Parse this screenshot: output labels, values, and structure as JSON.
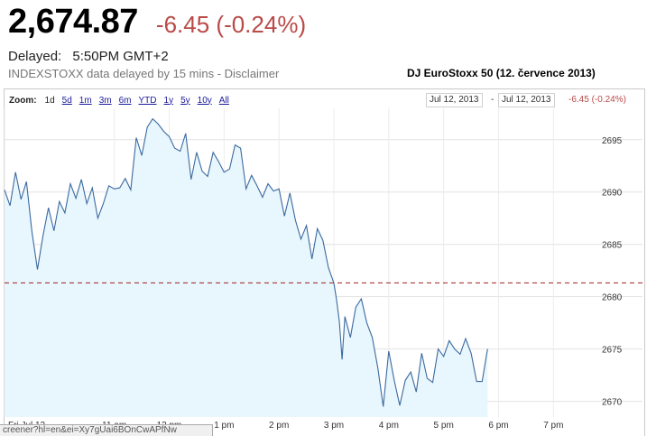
{
  "quote": {
    "price": "2,674.87",
    "change": "-6.45 (-0.24%)",
    "delayed_label": "Delayed:",
    "delayed_time": "5:50PM GMT+2",
    "source_note": "INDEXSTOXX data delayed by 15 mins - Disclaimer"
  },
  "chart_title": "DJ EuroStoxx 50 (12. července 2013)",
  "toolbar": {
    "zoom_label": "Zoom:",
    "zoom_options": [
      "1d",
      "5d",
      "1m",
      "3m",
      "6m",
      "YTD",
      "1y",
      "5y",
      "10y",
      "All"
    ]
  },
  "range": {
    "start": "Jul 12, 2013",
    "separator": "-",
    "end": "Jul 12, 2013",
    "change": "-6.45 (-0.24%)"
  },
  "status_url": "creener?hl=en&ei=Xy7gUai6BOnCwAPfNw",
  "colors": {
    "line": "#3b6aa0",
    "fill": "#e8f6fd",
    "prev_close": "#a02020",
    "negative": "#b94a48"
  },
  "chart_data": {
    "type": "area",
    "title": "",
    "x_ticks": [
      "Fri Jul 12",
      "11 am",
      "12 pm",
      "1 pm",
      "2 pm",
      "3 pm",
      "4 pm",
      "5 pm",
      "6 pm",
      "7 pm"
    ],
    "y_ticks": [
      2670,
      2675,
      2680,
      2685,
      2690,
      2695
    ],
    "ylim": [
      2668.5,
      2698
    ],
    "xlim": [
      9.0,
      19.8
    ],
    "grid": true,
    "previous_close": 2681.32,
    "series": [
      {
        "x": [
          9.0,
          9.1,
          9.2,
          9.3,
          9.4,
          9.5,
          9.6,
          9.7,
          9.8,
          9.9,
          10.0,
          10.1,
          10.2,
          10.3,
          10.4,
          10.5,
          10.6,
          10.7,
          10.8,
          10.9,
          11.0,
          11.1,
          11.2,
          11.3,
          11.4,
          11.5,
          11.6,
          11.7,
          11.8,
          11.9,
          12.0,
          12.1,
          12.2,
          12.3,
          12.4,
          12.5,
          12.6,
          12.7,
          12.8,
          12.9,
          13.0,
          13.1,
          13.2,
          13.3,
          13.4,
          13.5,
          13.6,
          13.7,
          13.8,
          13.9,
          14.0,
          14.1,
          14.2,
          14.3,
          14.4,
          14.5,
          14.6,
          14.7,
          14.8,
          14.9,
          15.0,
          15.05,
          15.1,
          15.15,
          15.2,
          15.3,
          15.4,
          15.5,
          15.6,
          15.7,
          15.8,
          15.9,
          16.0,
          16.1,
          16.2,
          16.3,
          16.4,
          16.5,
          16.6,
          16.7,
          16.8,
          16.9,
          17.0,
          17.1,
          17.2,
          17.3,
          17.4,
          17.5,
          17.6,
          17.7,
          17.8
        ],
        "values": [
          2690.2,
          2688.7,
          2691.9,
          2689.3,
          2691.0,
          2686.2,
          2682.6,
          2685.8,
          2688.5,
          2686.3,
          2689.1,
          2688.0,
          2690.8,
          2689.4,
          2691.2,
          2688.9,
          2690.4,
          2687.5,
          2688.9,
          2690.6,
          2690.3,
          2690.4,
          2691.3,
          2690.2,
          2695.2,
          2693.5,
          2696.2,
          2697.0,
          2696.5,
          2695.8,
          2695.3,
          2694.2,
          2693.9,
          2695.6,
          2691.2,
          2693.8,
          2692.0,
          2691.5,
          2693.8,
          2692.9,
          2691.9,
          2692.2,
          2694.5,
          2694.2,
          2690.3,
          2691.6,
          2690.6,
          2689.5,
          2690.8,
          2690.1,
          2690.3,
          2687.7,
          2689.9,
          2687.3,
          2685.5,
          2686.8,
          2683.6,
          2686.5,
          2685.4,
          2682.8,
          2681.3,
          2679.7,
          2677.6,
          2674.0,
          2678.1,
          2676.1,
          2679.0,
          2679.8,
          2677.5,
          2676.1,
          2673.2,
          2669.5,
          2674.8,
          2672.0,
          2669.6,
          2672.0,
          2672.8,
          2670.9,
          2674.6,
          2672.2,
          2671.8,
          2675.0,
          2674.3,
          2675.8,
          2675.0,
          2674.5,
          2676.0,
          2674.6,
          2671.9,
          2671.9,
          2675.0
        ]
      }
    ]
  }
}
